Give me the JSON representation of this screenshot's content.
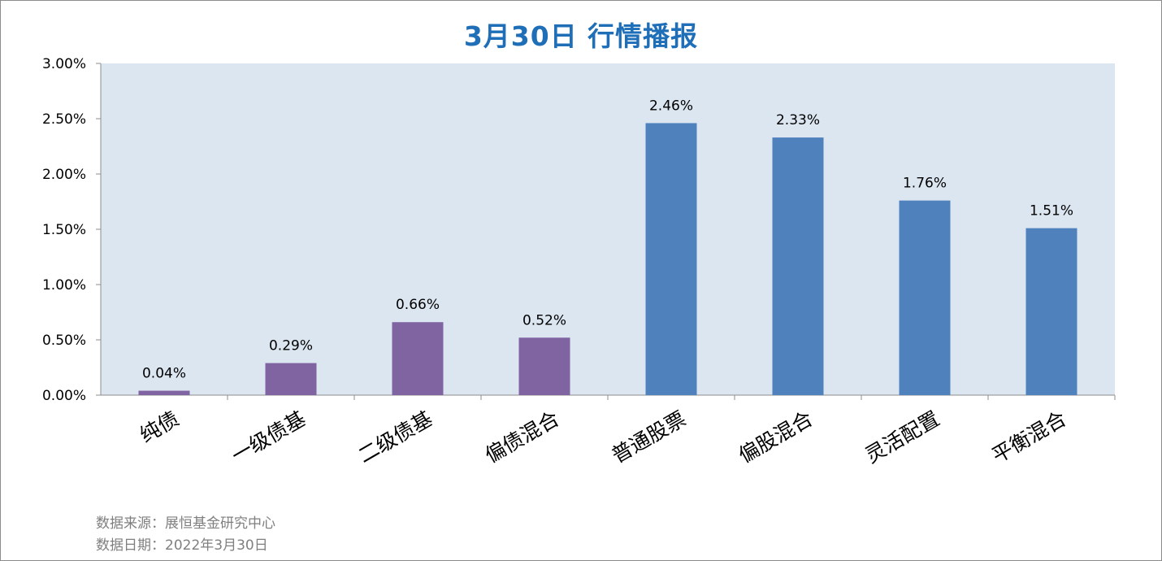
{
  "title": "3月30日  行情播报",
  "footer": {
    "source": "数据来源：展恒基金研究中心",
    "date": "数据日期：2022年3月30日"
  },
  "chart_data": {
    "type": "bar",
    "categories": [
      "纯债",
      "一级债基",
      "二级债基",
      "偏债混合",
      "普通股票",
      "偏股混合",
      "灵活配置",
      "平衡混合"
    ],
    "values": [
      0.04,
      0.29,
      0.66,
      0.52,
      2.46,
      2.33,
      1.76,
      1.51
    ],
    "data_labels": [
      "0.04%",
      "0.29%",
      "0.66%",
      "0.52%",
      "2.46%",
      "2.33%",
      "1.76%",
      "1.51%"
    ],
    "value_unit": "%",
    "ylim": [
      0,
      3
    ],
    "yticks": [
      0,
      0.5,
      1.0,
      1.5,
      2.0,
      2.5,
      3.0
    ],
    "ytick_labels": [
      "0.00%",
      "0.50%",
      "1.00%",
      "1.50%",
      "2.00%",
      "2.50%",
      "3.00%"
    ],
    "bar_colors": [
      "#8064a2",
      "#8064a2",
      "#8064a2",
      "#8064a2",
      "#4f81bd",
      "#4f81bd",
      "#4f81bd",
      "#4f81bd"
    ],
    "plot_background": "#dce6f1",
    "grid": false,
    "legend": "none"
  }
}
